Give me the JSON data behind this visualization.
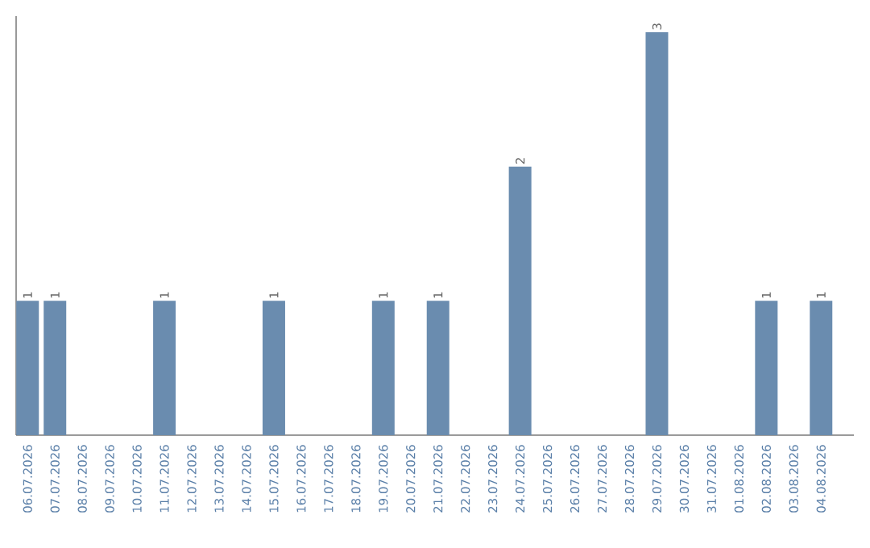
{
  "chart_data": {
    "type": "bar",
    "color": "#6a8caf",
    "categories": [
      "06.07.2026",
      "07.07.2026",
      "08.07.2026",
      "09.07.2026",
      "10.07.2026",
      "11.07.2026",
      "12.07.2026",
      "13.07.2026",
      "14.07.2026",
      "15.07.2026",
      "16.07.2026",
      "17.07.2026",
      "18.07.2026",
      "19.07.2026",
      "20.07.2026",
      "21.07.2026",
      "22.07.2026",
      "23.07.2026",
      "24.07.2026",
      "25.07.2026",
      "26.07.2026",
      "27.07.2026",
      "28.07.2026",
      "29.07.2026",
      "30.07.2026",
      "31.07.2026",
      "01.08.2026",
      "02.08.2026",
      "03.08.2026",
      "04.08.2026"
    ],
    "values": [
      1,
      1,
      0,
      0,
      0,
      1,
      0,
      0,
      0,
      1,
      0,
      0,
      0,
      1,
      0,
      1,
      0,
      0,
      2,
      0,
      0,
      0,
      0,
      3,
      0,
      0,
      0,
      1,
      0,
      1
    ],
    "value_labels": [
      "1",
      "1",
      null,
      null,
      null,
      "1",
      null,
      null,
      null,
      "1",
      null,
      null,
      null,
      "1",
      null,
      "1",
      null,
      null,
      "2",
      null,
      null,
      null,
      null,
      "3",
      null,
      null,
      null,
      "1",
      null,
      "1"
    ]
  }
}
